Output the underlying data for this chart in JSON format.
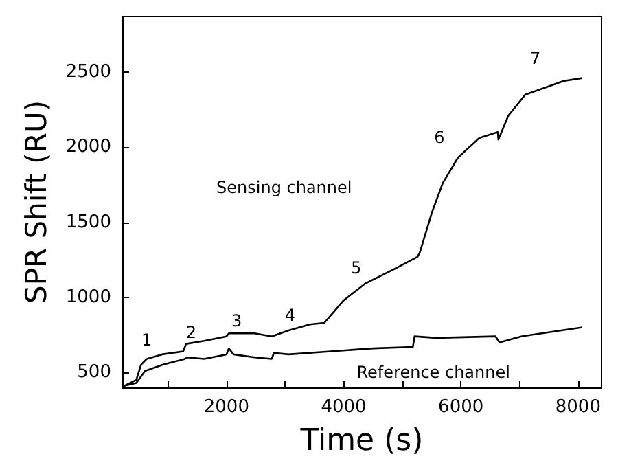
{
  "chart_data": {
    "type": "line",
    "xlabel": "Time (s)",
    "ylabel": "SPR Shift (RU)",
    "xlim": [
      220,
      8400
    ],
    "ylim": [
      400,
      2870
    ],
    "xticks": [
      {
        "value": 1000,
        "label": null
      },
      2000,
      {
        "value": 3000,
        "label": null
      },
      4000,
      {
        "value": 5000,
        "label": null
      },
      6000,
      {
        "value": 7000,
        "label": null
      },
      8000
    ],
    "yticks": [
      500,
      1000,
      1500,
      2000,
      2500
    ],
    "marker": "none",
    "line_style": "solid",
    "series": [
      {
        "color": "#000000",
        "x": [
          250,
          460,
          540,
          640,
          900,
          1260,
          1310,
          1620,
          2000,
          2040,
          2480,
          2770,
          3060,
          3420,
          3670,
          4000,
          4360,
          4870,
          5260,
          5300,
          5510,
          5690,
          5950,
          6310,
          6630,
          6640,
          6810,
          7100,
          7390,
          7750,
          8070
        ],
        "values": [
          410,
          450,
          550,
          590,
          620,
          640,
          690,
          710,
          740,
          760,
          760,
          740,
          780,
          820,
          830,
          980,
          1090,
          1190,
          1270,
          1300,
          1570,
          1760,
          1930,
          2060,
          2100,
          2050,
          2210,
          2350,
          2390,
          2440,
          2460
        ]
      },
      {
        "color": "#000000",
        "x": [
          250,
          460,
          610,
          900,
          1290,
          1330,
          1620,
          2000,
          2040,
          2120,
          2480,
          2770,
          2810,
          3060,
          3780,
          4500,
          5180,
          5210,
          5580,
          6590,
          6660,
          7030,
          8070
        ],
        "values": [
          410,
          430,
          510,
          550,
          590,
          600,
          590,
          620,
          660,
          620,
          600,
          590,
          630,
          620,
          640,
          660,
          670,
          740,
          730,
          740,
          700,
          740,
          800
        ]
      }
    ],
    "annotations": [
      "1",
      "2",
      "3",
      "4",
      "5",
      "6",
      "7",
      "Sensing channel",
      "Reference channel"
    ]
  }
}
